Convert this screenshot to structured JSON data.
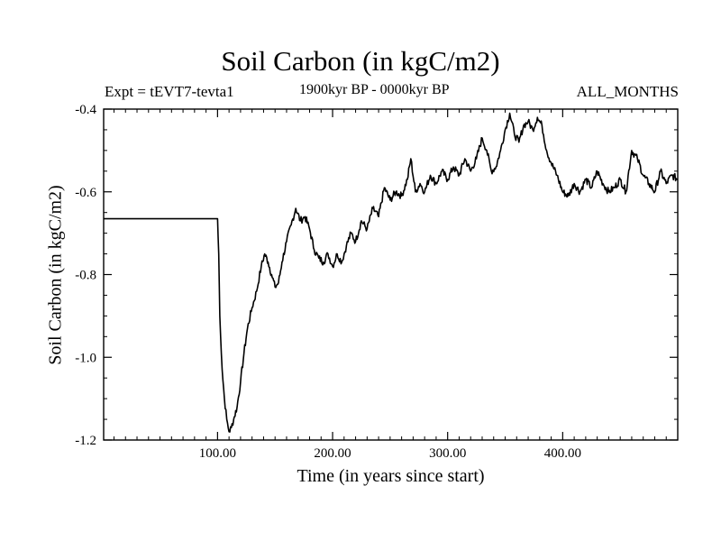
{
  "chart_data": {
    "type": "line",
    "title": "Soil Carbon (in kgC/m2)",
    "subtitle_left": "Expt = tEVT7-tevta1",
    "subtitle_center": "1900kyr BP - 0000kyr BP",
    "subtitle_right": "ALL_MONTHS",
    "xlabel": "Time (in years since start)",
    "ylabel": "Soil Carbon (in kgC/m2)",
    "xlim": [
      1,
      500
    ],
    "ylim": [
      -1.2,
      -0.4
    ],
    "x_ticks": [
      100,
      200,
      300,
      400
    ],
    "x_tick_labels": [
      "100.00",
      "200.00",
      "300.00",
      "400.00"
    ],
    "y_ticks": [
      -1.2,
      -1.0,
      -0.8,
      -0.6,
      -0.4
    ],
    "y_tick_labels": [
      "-1.2",
      "-1.0",
      "-0.8",
      "-0.6",
      "-0.4"
    ],
    "grid": false,
    "series": [
      {
        "name": "Soil Carbon",
        "x": [
          1,
          100,
          101,
          102,
          104,
          106,
          108,
          110,
          112,
          114,
          117,
          120,
          123,
          126,
          130,
          134,
          138,
          141,
          144,
          147,
          150,
          153,
          156,
          160,
          164,
          168,
          172,
          176,
          180,
          184,
          188,
          192,
          196,
          200,
          204,
          208,
          212,
          216,
          220,
          225,
          230,
          235,
          240,
          245,
          250,
          255,
          260,
          265,
          268,
          272,
          276,
          280,
          285,
          290,
          295,
          300,
          305,
          310,
          315,
          320,
          325,
          330,
          334,
          338,
          342,
          346,
          350,
          354,
          358,
          362,
          366,
          370,
          374,
          378,
          382,
          386,
          390,
          395,
          400,
          405,
          410,
          415,
          420,
          425,
          430,
          435,
          440,
          445,
          450,
          455,
          460,
          465,
          470,
          475,
          480,
          485,
          490,
          495,
          500
        ],
        "y": [
          -0.665,
          -0.665,
          -0.75,
          -0.9,
          -1.03,
          -1.1,
          -1.15,
          -1.18,
          -1.17,
          -1.15,
          -1.12,
          -1.06,
          -0.99,
          -0.93,
          -0.88,
          -0.84,
          -0.78,
          -0.75,
          -0.77,
          -0.8,
          -0.83,
          -0.82,
          -0.77,
          -0.72,
          -0.68,
          -0.64,
          -0.67,
          -0.66,
          -0.69,
          -0.74,
          -0.76,
          -0.77,
          -0.75,
          -0.78,
          -0.75,
          -0.77,
          -0.73,
          -0.7,
          -0.72,
          -0.67,
          -0.69,
          -0.64,
          -0.66,
          -0.59,
          -0.62,
          -0.6,
          -0.61,
          -0.57,
          -0.52,
          -0.6,
          -0.58,
          -0.6,
          -0.56,
          -0.58,
          -0.55,
          -0.57,
          -0.54,
          -0.56,
          -0.52,
          -0.55,
          -0.52,
          -0.47,
          -0.5,
          -0.55,
          -0.54,
          -0.5,
          -0.45,
          -0.41,
          -0.46,
          -0.48,
          -0.44,
          -0.43,
          -0.45,
          -0.42,
          -0.44,
          -0.5,
          -0.53,
          -0.56,
          -0.6,
          -0.61,
          -0.58,
          -0.6,
          -0.57,
          -0.59,
          -0.55,
          -0.58,
          -0.6,
          -0.59,
          -0.57,
          -0.6,
          -0.5,
          -0.52,
          -0.56,
          -0.58,
          -0.6,
          -0.55,
          -0.58,
          -0.56,
          -0.57
        ]
      }
    ]
  }
}
